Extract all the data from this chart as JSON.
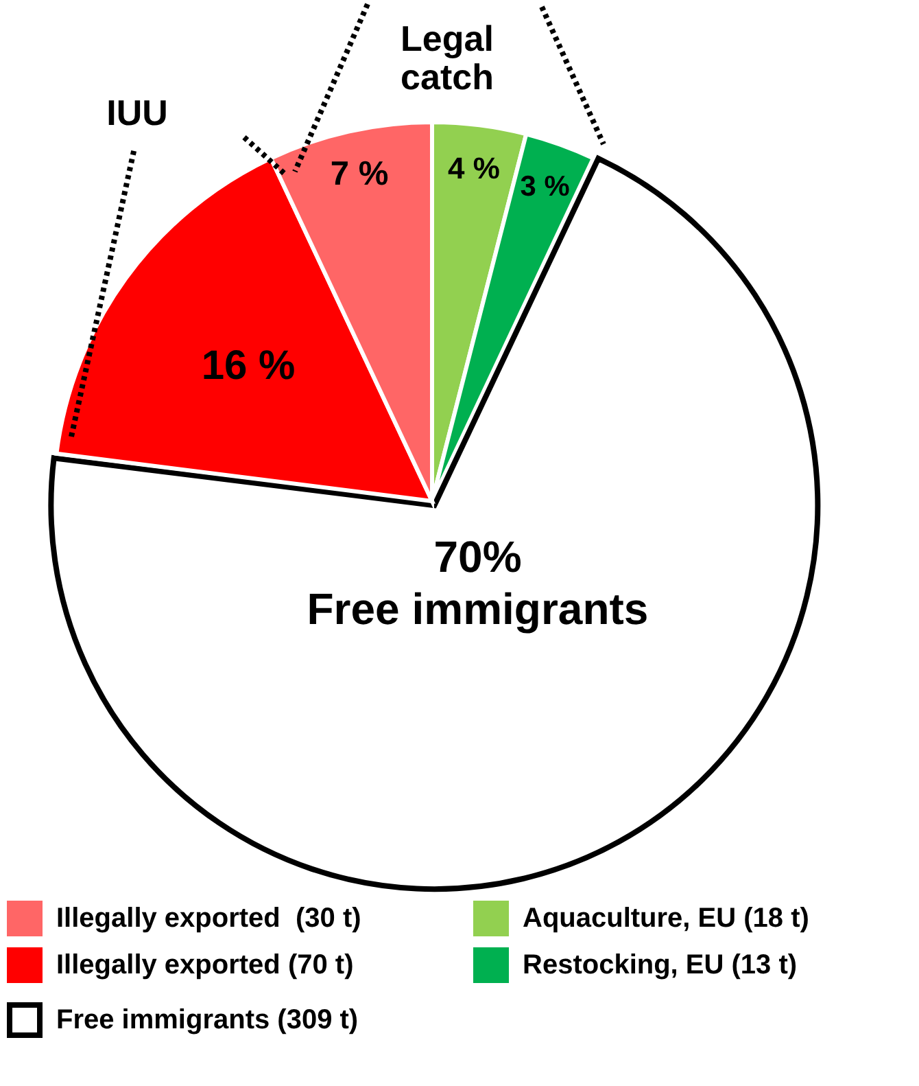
{
  "chart_data": {
    "type": "pie",
    "categories": [
      "Aquaculture, EU (18 t)",
      "Restocking, EU (13 t)",
      "Free immigrants (309 t)",
      "Illegally exported (70 t)",
      "Illegally exported  (30 t)"
    ],
    "values": [
      4,
      3,
      70,
      16,
      7
    ],
    "colors": [
      "#92d050",
      "#00b050",
      "#ffffff",
      "#ff0000",
      "#ff6666"
    ],
    "value_labels": [
      "4 %",
      "3 %",
      "70%",
      "16 %",
      "7 %"
    ],
    "annotations": [
      "IUU",
      "Legal catch",
      {
        "text": "Free immigrants",
        "x": "Free immigrants (309 t)"
      }
    ],
    "legend": "bottom"
  }
}
